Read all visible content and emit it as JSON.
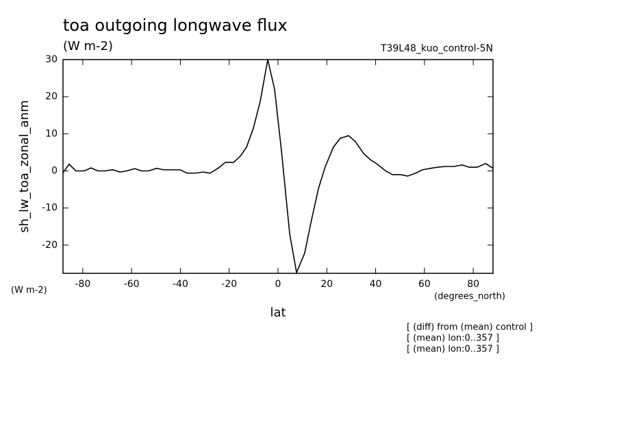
{
  "chart_data": {
    "type": "line",
    "title": "toa outgoing longwave flux",
    "subtitle": "(W m-2)",
    "run_label": "T39L48_kuo_control-5N",
    "y_label": "sh_lw_toa_zonal_anm",
    "y_units": "(W m-2)",
    "x_units": "(degrees_north)",
    "x_label": "lat",
    "notes": [
      "[ (diff) from (mean) control ]",
      "[ (mean) lon:0..357 ]",
      "[ (mean) lon:0..357 ]"
    ],
    "xlim": [
      -88.1,
      88.1
    ],
    "ylim": [
      -27.6,
      30
    ],
    "xticks": [
      -80,
      -60,
      -40,
      -20,
      0,
      20,
      40,
      60,
      80
    ],
    "yticks": [
      -20,
      -10,
      0,
      10,
      20,
      30
    ],
    "x": [
      -88.1,
      -85.6,
      -82.8,
      -79.4,
      -76.6,
      -73.8,
      -71.0,
      -67.7,
      -64.8,
      -62.0,
      -58.7,
      -55.9,
      -53.1,
      -49.7,
      -46.9,
      -43.5,
      -40.1,
      -37.3,
      -34.0,
      -30.6,
      -27.8,
      -24.4,
      -21.6,
      -18.2,
      -15.4,
      -12.9,
      -10.1,
      -7.3,
      -4.2,
      -1.4,
      1.4,
      4.8,
      7.6,
      10.9,
      13.8,
      16.6,
      19.4,
      22.7,
      25.5,
      28.9,
      31.7,
      35.1,
      37.9,
      40.7,
      44.1,
      46.9,
      50.2,
      53.1,
      56.4,
      59.2,
      62.6,
      65.4,
      68.8,
      72.1,
      75.5,
      78.3,
      81.7,
      85.1,
      88.1
    ],
    "series": [
      {
        "color": "#000000",
        "values": [
          -0.5,
          1.8,
          0,
          0,
          0.8,
          0,
          0,
          0.3,
          -0.3,
          0,
          0.6,
          0,
          0,
          0.7,
          0.3,
          0.3,
          0.3,
          -0.6,
          -0.6,
          -0.3,
          -0.6,
          0.8,
          2.3,
          2.3,
          4,
          6.4,
          11.5,
          18.7,
          30,
          22,
          5.5,
          -17,
          -27.4,
          -22.2,
          -13,
          -4.7,
          1.2,
          6.4,
          8.8,
          9.5,
          7.9,
          4.7,
          3,
          1.8,
          0,
          -1,
          -1,
          -1.4,
          -0.6,
          0.3,
          0.7,
          1,
          1.2,
          1.2,
          1.6,
          1,
          1,
          2,
          0.7
        ]
      }
    ]
  }
}
